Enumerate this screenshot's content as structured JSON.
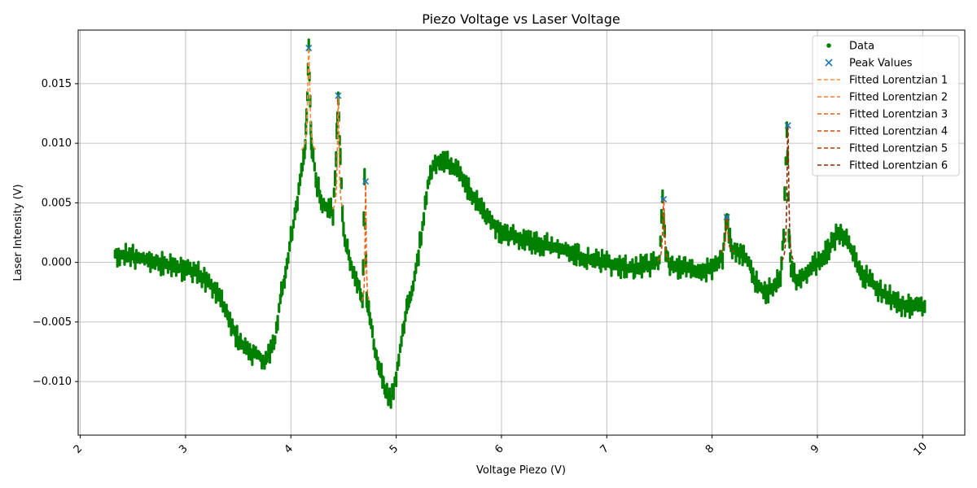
{
  "chart_data": {
    "type": "scatter",
    "title": "Piezo Voltage vs Laser Voltage",
    "xlabel": "Voltage Piezo (V)",
    "ylabel": "Laser Intensity (V)",
    "xlim": [
      1.98,
      10.4
    ],
    "ylim": [
      -0.0145,
      0.0195
    ],
    "grid": true,
    "legend_position": "top-right",
    "x_ticks": [
      {
        "value": 2,
        "label": "2"
      },
      {
        "value": 3,
        "label": "3"
      },
      {
        "value": 4,
        "label": "4"
      },
      {
        "value": 5,
        "label": "5"
      },
      {
        "value": 6,
        "label": "6"
      },
      {
        "value": 7,
        "label": "7"
      },
      {
        "value": 8,
        "label": "8"
      },
      {
        "value": 9,
        "label": "9"
      },
      {
        "value": 10,
        "label": "10"
      }
    ],
    "y_ticks": [
      {
        "value": -0.01,
        "label": "−0.010"
      },
      {
        "value": -0.005,
        "label": "−0.005"
      },
      {
        "value": 0,
        "label": "0.000"
      },
      {
        "value": 0.005,
        "label": "0.005"
      },
      {
        "value": 0.01,
        "label": "0.010"
      },
      {
        "value": 0.015,
        "label": "0.015"
      }
    ],
    "data_color": "#008000",
    "peak_color": "#1f77b4",
    "data_series": {
      "name": "Data",
      "band_width": 0.0009,
      "x": [
        2.33,
        2.5,
        2.7,
        2.9,
        3.1,
        3.2,
        3.3,
        3.4,
        3.5,
        3.6,
        3.7,
        3.75,
        3.8,
        3.85,
        3.9,
        3.95,
        4.0,
        4.05,
        4.1,
        4.13,
        4.15,
        4.17,
        4.19,
        4.2,
        4.25,
        4.3,
        4.35,
        4.4,
        4.43,
        4.45,
        4.47,
        4.5,
        4.55,
        4.6,
        4.65,
        4.68,
        4.7,
        4.72,
        4.75,
        4.8,
        4.85,
        4.9,
        4.95,
        5.0,
        5.05,
        5.1,
        5.15,
        5.2,
        5.25,
        5.3,
        5.35,
        5.4,
        5.5,
        5.6,
        5.7,
        5.8,
        5.9,
        6.0,
        6.2,
        6.4,
        6.6,
        6.8,
        7.0,
        7.2,
        7.4,
        7.5,
        7.53,
        7.56,
        7.6,
        7.7,
        7.8,
        7.9,
        8.0,
        8.1,
        8.14,
        8.18,
        8.25,
        8.3,
        8.35,
        8.4,
        8.5,
        8.6,
        8.65,
        8.68,
        8.71,
        8.73,
        8.75,
        8.8,
        8.9,
        9.0,
        9.1,
        9.2,
        9.3,
        9.35,
        9.4,
        9.5,
        9.6,
        9.7,
        9.8,
        9.9,
        10.02
      ],
      "y": [
        0.0007,
        0.0005,
        0.0001,
        -0.0004,
        -0.0008,
        -0.0015,
        -0.0025,
        -0.0045,
        -0.0065,
        -0.0075,
        -0.0078,
        -0.0085,
        -0.0075,
        -0.0065,
        -0.003,
        -0.001,
        0.002,
        0.0045,
        0.0075,
        0.009,
        0.012,
        0.018,
        0.011,
        0.0095,
        0.0065,
        0.005,
        0.0045,
        0.0042,
        0.009,
        0.014,
        0.0085,
        0.0025,
        0.0005,
        -0.001,
        -0.002,
        -0.0035,
        0.0068,
        -0.0035,
        -0.0045,
        -0.0075,
        -0.009,
        -0.011,
        -0.0115,
        -0.0095,
        -0.0065,
        -0.004,
        -0.0025,
        0.0,
        0.003,
        0.0065,
        0.008,
        0.0085,
        0.0083,
        0.0075,
        0.006,
        0.0045,
        0.0035,
        0.0025,
        0.002,
        0.0015,
        0.001,
        0.0003,
        0.0,
        -0.0005,
        -0.0003,
        0.0002,
        0.0053,
        0.001,
        -0.0003,
        -0.0005,
        -0.0005,
        -0.0008,
        -0.0005,
        0.0005,
        0.0038,
        0.0012,
        0.0008,
        0.0006,
        0.0,
        -0.0015,
        -0.0025,
        -0.002,
        -0.001,
        0.0025,
        0.0115,
        0.0025,
        -0.0005,
        -0.0015,
        -0.001,
        0.0,
        0.001,
        0.0025,
        0.0015,
        0.0005,
        -0.0008,
        -0.0015,
        -0.0025,
        -0.003,
        -0.0035,
        -0.0037,
        -0.0037
      ]
    },
    "peaks": {
      "name": "Peak Values",
      "x": [
        4.17,
        4.45,
        4.71,
        7.54,
        8.14,
        8.72
      ],
      "y": [
        0.018,
        0.014,
        0.0068,
        0.0053,
        0.0038,
        0.0115
      ]
    },
    "fits": [
      {
        "name": "Fitted Lorentzian 1",
        "color": "#fd8d3c",
        "x0": 4.17,
        "amp": 0.0088,
        "gamma": 0.012,
        "base": 0.0092
      },
      {
        "name": "Fitted Lorentzian 2",
        "color": "#f87a2d",
        "x0": 4.45,
        "amp": 0.0098,
        "gamma": 0.009,
        "base": 0.0042
      },
      {
        "name": "Fitted Lorentzian 3",
        "color": "#ec6417",
        "x0": 4.71,
        "amp": 0.0103,
        "gamma": 0.006,
        "base": -0.0035
      },
      {
        "name": "Fitted Lorentzian 4",
        "color": "#d94801",
        "x0": 7.54,
        "amp": 0.0053,
        "gamma": 0.01,
        "base": 0.0
      },
      {
        "name": "Fitted Lorentzian 5",
        "color": "#b33d02",
        "x0": 8.14,
        "amp": 0.003,
        "gamma": 0.012,
        "base": 0.0008
      },
      {
        "name": "Fitted Lorentzian 6",
        "color": "#8c2d04",
        "x0": 8.72,
        "amp": 0.0117,
        "gamma": 0.01,
        "base": -0.0002
      }
    ]
  }
}
